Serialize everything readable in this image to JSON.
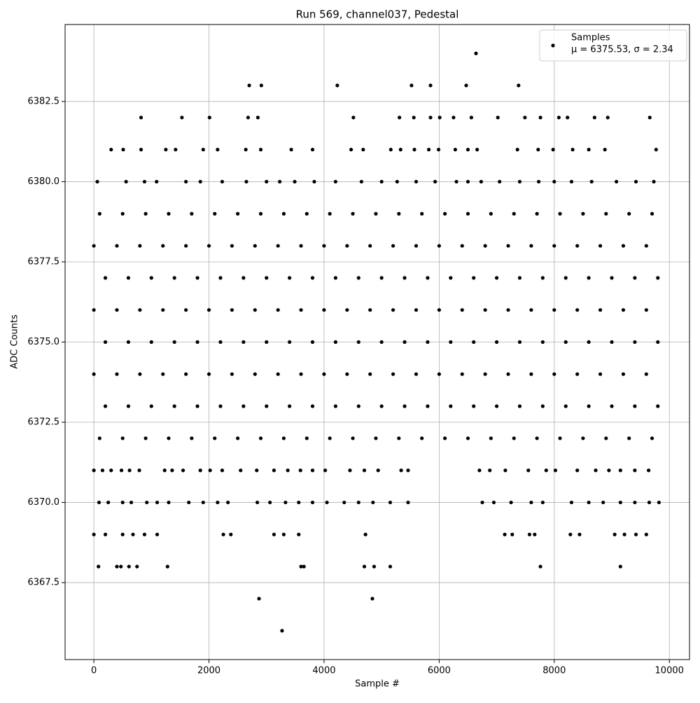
{
  "chart_data": {
    "type": "scatter",
    "title": "Run 569, channel037, Pedestal",
    "x_label": "Sample #",
    "y_label": "ADC Counts",
    "xlim": [
      -500,
      10350
    ],
    "ylim": [
      6365.1,
      6384.9
    ],
    "xticks": [
      0,
      2000,
      4000,
      6000,
      8000,
      10000
    ],
    "yticks": [
      6367.5,
      {
        "value": 6370,
        "label": "6370.0"
      },
      6372.5,
      {
        "value": 6375,
        "label": "6375.0"
      },
      6377.5,
      {
        "value": 6380,
        "label": "6380.0"
      },
      6382.5
    ],
    "grid": true,
    "legend": "upper right",
    "annotation": "μ = 6375.53, σ = 2.34",
    "series": [
      {
        "name": "Samples",
        "color": "#000000",
        "x": [
          6640,
          2700,
          2910,
          4230,
          5520,
          5850,
          6470,
          7380,
          820,
          1530,
          2010,
          2680,
          2850,
          4510,
          5310,
          5560,
          5850,
          6010,
          6250,
          6560,
          7020,
          7490,
          7760,
          8080,
          8230,
          8700,
          8930,
          9660,
          300,
          510,
          820,
          1250,
          1420,
          1900,
          2150,
          2640,
          2900,
          3430,
          3800,
          4470,
          4680,
          5160,
          5330,
          5570,
          5820,
          5990,
          6280,
          6500,
          6660,
          7360,
          7720,
          7980,
          8320,
          8600,
          8880,
          9770,
          60,
          560,
          880,
          1090,
          1600,
          1850,
          2230,
          2650,
          3000,
          3230,
          3490,
          3830,
          4200,
          4650,
          5000,
          5270,
          5600,
          5930,
          6300,
          6500,
          6730,
          7050,
          7400,
          7730,
          8000,
          8300,
          8650,
          9080,
          9420,
          9730,
          100,
          500,
          900,
          1300,
          1700,
          2100,
          2500,
          2900,
          3300,
          3700,
          4100,
          4500,
          4900,
          5300,
          5700,
          6100,
          6500,
          6900,
          7300,
          7700,
          8100,
          8500,
          8900,
          9300,
          9700,
          0,
          400,
          800,
          1200,
          1600,
          2000,
          2400,
          2800,
          3200,
          3600,
          4000,
          4400,
          4800,
          5200,
          5600,
          6000,
          6400,
          6800,
          7200,
          7600,
          8000,
          8400,
          8800,
          9200,
          9600,
          200,
          600,
          1000,
          1400,
          1800,
          2200,
          2600,
          3000,
          3400,
          3800,
          4200,
          4600,
          5000,
          5400,
          5800,
          6200,
          6600,
          7000,
          7400,
          7800,
          8200,
          8600,
          9000,
          9400,
          9800,
          0,
          400,
          800,
          1200,
          1600,
          2000,
          2400,
          2800,
          3200,
          3600,
          4000,
          4400,
          4800,
          5200,
          5600,
          6000,
          6400,
          6800,
          7200,
          7600,
          8000,
          8400,
          8800,
          9200,
          9600,
          200,
          600,
          1000,
          1400,
          1800,
          2200,
          2600,
          3000,
          3400,
          3800,
          4200,
          4600,
          5000,
          5400,
          5800,
          6200,
          6600,
          7000,
          7400,
          7800,
          8200,
          8600,
          9000,
          9400,
          9800,
          0,
          400,
          800,
          1200,
          1600,
          2000,
          2400,
          2800,
          3200,
          3600,
          4000,
          4400,
          4800,
          5200,
          5600,
          6000,
          6400,
          6800,
          7200,
          7600,
          8000,
          8400,
          8800,
          9200,
          9600,
          200,
          600,
          1000,
          1400,
          1800,
          2200,
          2600,
          3000,
          3400,
          3800,
          4200,
          4600,
          5000,
          5400,
          5800,
          6200,
          6600,
          7000,
          7400,
          7800,
          8200,
          8600,
          9000,
          9400,
          9800,
          100,
          500,
          900,
          1300,
          1700,
          2100,
          2500,
          2900,
          3300,
          3700,
          4100,
          4500,
          4900,
          5300,
          5700,
          6100,
          6500,
          6900,
          7300,
          7700,
          8100,
          8500,
          8900,
          9300,
          9700,
          0,
          150,
          300,
          480,
          620,
          790,
          1230,
          1360,
          1550,
          1850,
          2020,
          2230,
          2550,
          2830,
          3130,
          3370,
          3590,
          3800,
          4020,
          4450,
          4700,
          4940,
          5340,
          5460,
          6700,
          6880,
          7150,
          7550,
          7860,
          8020,
          8400,
          8720,
          8950,
          9150,
          9400,
          9640,
          90,
          250,
          500,
          650,
          920,
          1100,
          1300,
          1650,
          1900,
          2150,
          2330,
          2840,
          3060,
          3330,
          3560,
          3800,
          4050,
          4350,
          4600,
          4850,
          5150,
          5460,
          6750,
          6950,
          7250,
          7600,
          7800,
          8300,
          8600,
          8850,
          9150,
          9400,
          9650,
          9820,
          0,
          200,
          500,
          680,
          880,
          1100,
          2250,
          2380,
          3130,
          3300,
          3560,
          4720,
          7140,
          7270,
          7570,
          7660,
          8280,
          8440,
          9050,
          9220,
          9420,
          9600,
          80,
          400,
          470,
          610,
          750,
          1280,
          3600,
          3650,
          4700,
          4870,
          5150,
          7760,
          9150,
          2870,
          4840,
          3270
        ],
        "values": [
          6384,
          6383,
          6383,
          6383,
          6383,
          6383,
          6383,
          6383,
          6382,
          6382,
          6382,
          6382,
          6382,
          6382,
          6382,
          6382,
          6382,
          6382,
          6382,
          6382,
          6382,
          6382,
          6382,
          6382,
          6382,
          6382,
          6382,
          6382,
          6381,
          6381,
          6381,
          6381,
          6381,
          6381,
          6381,
          6381,
          6381,
          6381,
          6381,
          6381,
          6381,
          6381,
          6381,
          6381,
          6381,
          6381,
          6381,
          6381,
          6381,
          6381,
          6381,
          6381,
          6381,
          6381,
          6381,
          6381,
          6380,
          6380,
          6380,
          6380,
          6380,
          6380,
          6380,
          6380,
          6380,
          6380,
          6380,
          6380,
          6380,
          6380,
          6380,
          6380,
          6380,
          6380,
          6380,
          6380,
          6380,
          6380,
          6380,
          6380,
          6380,
          6380,
          6380,
          6380,
          6380,
          6380,
          6379,
          6379,
          6379,
          6379,
          6379,
          6379,
          6379,
          6379,
          6379,
          6379,
          6379,
          6379,
          6379,
          6379,
          6379,
          6379,
          6379,
          6379,
          6379,
          6379,
          6379,
          6379,
          6379,
          6379,
          6379,
          6378,
          6378,
          6378,
          6378,
          6378,
          6378,
          6378,
          6378,
          6378,
          6378,
          6378,
          6378,
          6378,
          6378,
          6378,
          6378,
          6378,
          6378,
          6378,
          6378,
          6378,
          6378,
          6378,
          6378,
          6378,
          6377,
          6377,
          6377,
          6377,
          6377,
          6377,
          6377,
          6377,
          6377,
          6377,
          6377,
          6377,
          6377,
          6377,
          6377,
          6377,
          6377,
          6377,
          6377,
          6377,
          6377,
          6377,
          6377,
          6377,
          6377,
          6376,
          6376,
          6376,
          6376,
          6376,
          6376,
          6376,
          6376,
          6376,
          6376,
          6376,
          6376,
          6376,
          6376,
          6376,
          6376,
          6376,
          6376,
          6376,
          6376,
          6376,
          6376,
          6376,
          6376,
          6376,
          6375,
          6375,
          6375,
          6375,
          6375,
          6375,
          6375,
          6375,
          6375,
          6375,
          6375,
          6375,
          6375,
          6375,
          6375,
          6375,
          6375,
          6375,
          6375,
          6375,
          6375,
          6375,
          6375,
          6375,
          6375,
          6374,
          6374,
          6374,
          6374,
          6374,
          6374,
          6374,
          6374,
          6374,
          6374,
          6374,
          6374,
          6374,
          6374,
          6374,
          6374,
          6374,
          6374,
          6374,
          6374,
          6374,
          6374,
          6374,
          6374,
          6374,
          6373,
          6373,
          6373,
          6373,
          6373,
          6373,
          6373,
          6373,
          6373,
          6373,
          6373,
          6373,
          6373,
          6373,
          6373,
          6373,
          6373,
          6373,
          6373,
          6373,
          6373,
          6373,
          6373,
          6373,
          6373,
          6372,
          6372,
          6372,
          6372,
          6372,
          6372,
          6372,
          6372,
          6372,
          6372,
          6372,
          6372,
          6372,
          6372,
          6372,
          6372,
          6372,
          6372,
          6372,
          6372,
          6372,
          6372,
          6372,
          6372,
          6372,
          6371,
          6371,
          6371,
          6371,
          6371,
          6371,
          6371,
          6371,
          6371,
          6371,
          6371,
          6371,
          6371,
          6371,
          6371,
          6371,
          6371,
          6371,
          6371,
          6371,
          6371,
          6371,
          6371,
          6371,
          6371,
          6371,
          6371,
          6371,
          6371,
          6371,
          6371,
          6371,
          6371,
          6371,
          6371,
          6371,
          6370,
          6370,
          6370,
          6370,
          6370,
          6370,
          6370,
          6370,
          6370,
          6370,
          6370,
          6370,
          6370,
          6370,
          6370,
          6370,
          6370,
          6370,
          6370,
          6370,
          6370,
          6370,
          6370,
          6370,
          6370,
          6370,
          6370,
          6370,
          6370,
          6370,
          6370,
          6370,
          6370,
          6370,
          6369,
          6369,
          6369,
          6369,
          6369,
          6369,
          6369,
          6369,
          6369,
          6369,
          6369,
          6369,
          6369,
          6369,
          6369,
          6369,
          6369,
          6369,
          6369,
          6369,
          6369,
          6369,
          6368,
          6368,
          6368,
          6368,
          6368,
          6368,
          6368,
          6368,
          6368,
          6368,
          6368,
          6368,
          6368,
          6367,
          6367,
          6366
        ]
      }
    ]
  }
}
